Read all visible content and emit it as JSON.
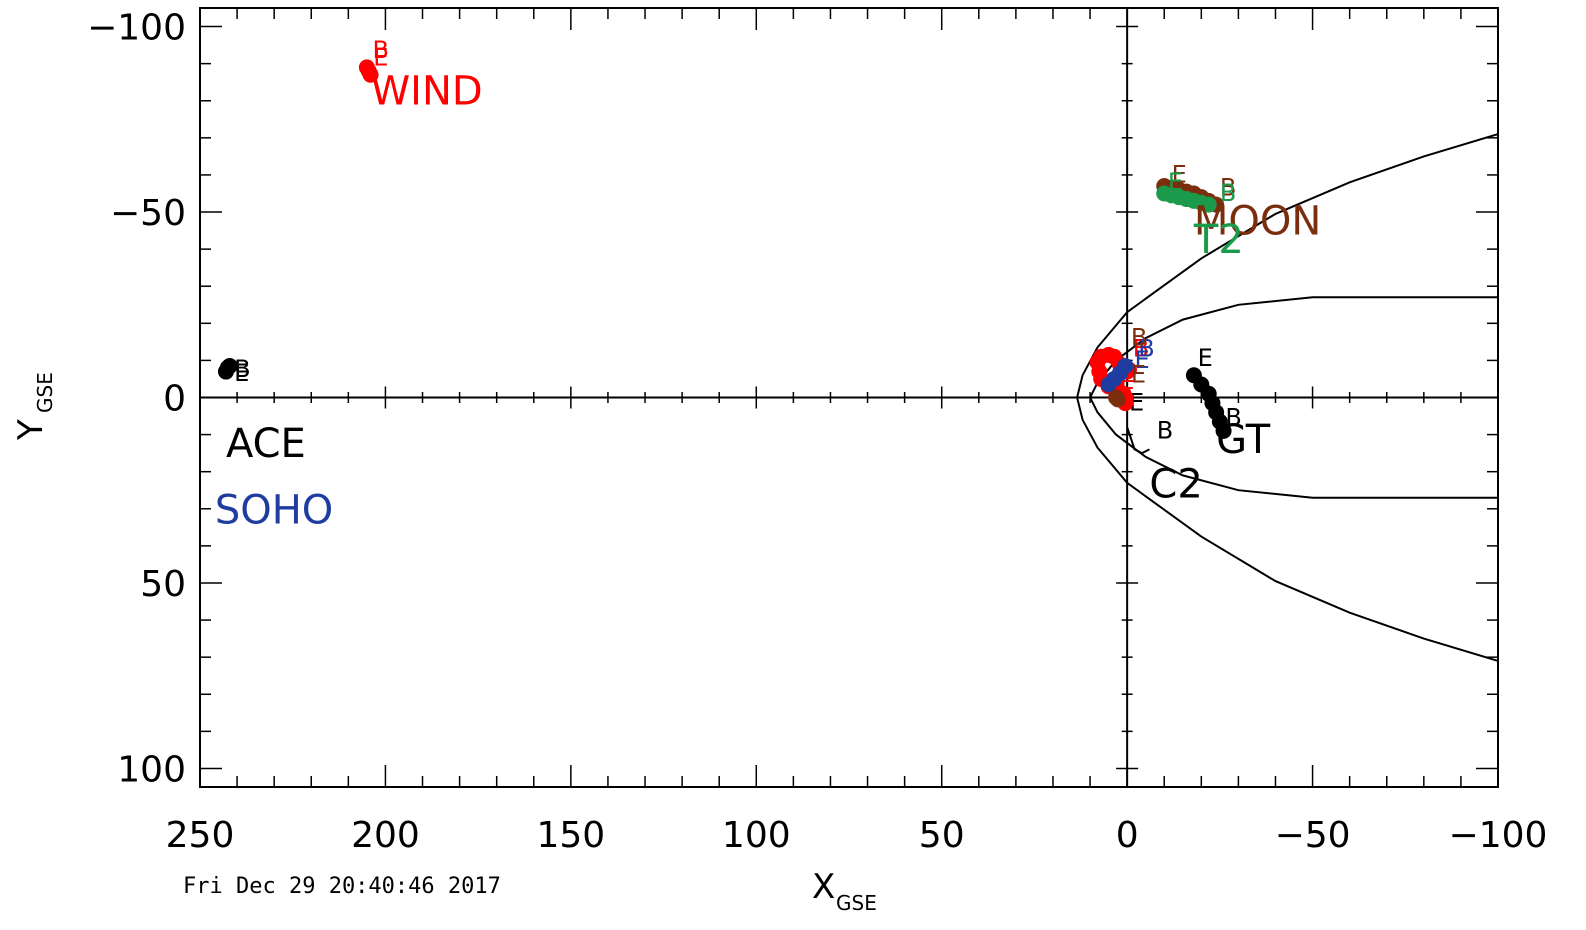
{
  "chart_data": {
    "type": "scatter",
    "title": "",
    "xlabel": {
      "main": "X",
      "sub": "GSE"
    },
    "ylabel": {
      "main": "Y",
      "sub": "GSE"
    },
    "xlim": [
      250,
      -100
    ],
    "ylim": [
      -105,
      105
    ],
    "grid": false,
    "x_ticks": [
      250,
      200,
      150,
      100,
      50,
      0,
      -50,
      -100
    ],
    "x_tick_labels": [
      "250",
      "200",
      "150",
      "100",
      "50",
      "0",
      "−50",
      "−100"
    ],
    "y_ticks": [
      -100,
      -50,
      0,
      50,
      100
    ],
    "y_tick_labels": [
      "−100",
      "−50",
      "0",
      "50",
      "100"
    ],
    "series": [
      {
        "name": "WIND",
        "color": "#ff0000",
        "label_at": [
          204,
          -79
        ],
        "points": [
          [
            205,
            -89
          ],
          [
            204.5,
            -88
          ],
          [
            204,
            -87
          ]
        ],
        "begin_at": [
          203.5,
          -91.5
        ],
        "end_at": [
          203.3,
          -89.5
        ]
      },
      {
        "name": "ACE",
        "color": "#000000",
        "label_at": [
          243,
          16
        ],
        "points": [
          [
            243,
            -7
          ],
          [
            242.5,
            -8
          ],
          [
            242,
            -8.5
          ]
        ],
        "begin_at": [
          240.8,
          -5.5
        ],
        "end_at": [
          240.8,
          -4.5
        ]
      },
      {
        "name": "SOHO",
        "color": "#1f3ca0",
        "label_at": [
          246,
          34
        ],
        "points": []
      },
      {
        "name": "MOON",
        "color": "#7a2e0e",
        "label_at": [
          -18,
          -44
        ],
        "points": [
          [
            -10,
            -57
          ],
          [
            -12,
            -56.5
          ],
          [
            -14,
            -56
          ],
          [
            -16,
            -55.5
          ],
          [
            -18,
            -55
          ],
          [
            -20,
            -54
          ],
          [
            -22,
            -53
          ],
          [
            -24,
            -52
          ]
        ],
        "begin_at": [
          -25,
          -54.5
        ],
        "end_at": [
          -12,
          -58
        ]
      },
      {
        "name": "T2",
        "color": "#1a9a4a",
        "label_at": [
          -18,
          -39
        ],
        "points": [
          [
            -10,
            -55
          ],
          [
            -12,
            -54.5
          ],
          [
            -14,
            -54
          ],
          [
            -16,
            -53.5
          ],
          [
            -18,
            -53
          ],
          [
            -20,
            -52.5
          ],
          [
            -22,
            -52
          ]
        ],
        "begin_at": [
          -25,
          -53
        ],
        "end_at": [
          -11,
          -56
        ]
      },
      {
        "name": "GT",
        "color": "#000000",
        "label_at": [
          -24,
          15
        ],
        "points": [
          [
            -18,
            -6
          ],
          [
            -20,
            -3.5
          ],
          [
            -22,
            -1
          ],
          [
            -23,
            1.5
          ],
          [
            -24,
            4
          ],
          [
            -25,
            6.5
          ],
          [
            -26,
            9
          ]
        ],
        "begin_at": [
          -26.5,
          7.5
        ],
        "end_at": [
          -19,
          -8.5
        ]
      },
      {
        "name": "C2",
        "color": "#000000",
        "label_at": [
          -6,
          27
        ],
        "points": [],
        "track": [
          [
            0,
            8
          ],
          [
            -1,
            11
          ],
          [
            -2,
            14
          ],
          [
            -4,
            15
          ],
          [
            -6,
            14
          ]
        ],
        "begin_at": [
          -8,
          11
        ],
        "end_at": [
          -0.5,
          3.5
        ]
      },
      {
        "name": "",
        "color": "#ff0000",
        "label_at": null,
        "points": [
          [
            8,
            -9.5
          ],
          [
            7,
            -11
          ],
          [
            5,
            -11.5
          ],
          [
            3.5,
            -11
          ],
          [
            2,
            -9
          ],
          [
            1,
            -7
          ],
          [
            0,
            -7
          ],
          [
            -0.5,
            -7.5
          ],
          [
            7.5,
            -7
          ],
          [
            7,
            -5
          ],
          [
            5,
            -3
          ],
          [
            3,
            -3
          ],
          [
            1,
            -1
          ],
          [
            0.5,
            0
          ],
          [
            0.5,
            1.5
          ]
        ],
        "begin_at": [
          -1.5,
          -11
        ],
        "end_at": [
          2,
          0
        ]
      },
      {
        "name": "",
        "color": "#1f3ca0",
        "label_at": null,
        "points": [
          [
            5,
            -3.5
          ],
          [
            3.5,
            -5
          ],
          [
            2,
            -6.5
          ],
          [
            0.5,
            -8.5
          ]
        ],
        "begin_at": [
          -3,
          -11
        ],
        "end_at": [
          -2,
          -8
        ]
      },
      {
        "name": "",
        "color": "#7a2e0e",
        "label_at": null,
        "points": [
          [
            3,
            0
          ],
          [
            2.5,
            0.5
          ]
        ],
        "begin_at": [
          -1,
          -14
        ],
        "end_at": [
          -1,
          -4
        ]
      }
    ],
    "model_curves": [
      {
        "name": "bow shock",
        "color": "#000000",
        "path": [
          [
            -100,
            -71
          ],
          [
            -80,
            -65
          ],
          [
            -60,
            -58
          ],
          [
            -40,
            -49.5
          ],
          [
            -20,
            -37.5
          ],
          [
            0,
            -23
          ],
          [
            8,
            -13.5
          ],
          [
            12,
            -6
          ],
          [
            13.5,
            0
          ],
          [
            12,
            6
          ],
          [
            8,
            13.5
          ],
          [
            0,
            23
          ],
          [
            -20,
            37.5
          ],
          [
            -40,
            49.5
          ],
          [
            -60,
            58
          ],
          [
            -80,
            65
          ],
          [
            -100,
            71
          ]
        ]
      },
      {
        "name": "magnetopause",
        "color": "#000000",
        "path": [
          [
            -100,
            -27
          ],
          [
            -50,
            -27
          ],
          [
            -30,
            -25
          ],
          [
            -15,
            -21
          ],
          [
            -5,
            -16
          ],
          [
            3,
            -10
          ],
          [
            8,
            -4
          ],
          [
            10,
            0
          ],
          [
            8,
            4
          ],
          [
            3,
            10
          ],
          [
            -5,
            16
          ],
          [
            -15,
            21
          ],
          [
            -30,
            25
          ],
          [
            -50,
            27
          ],
          [
            -100,
            27
          ]
        ]
      }
    ]
  },
  "timestamp": "Fri Dec 29 20:40:46 2017",
  "begin_marker": "B",
  "end_marker": "E"
}
